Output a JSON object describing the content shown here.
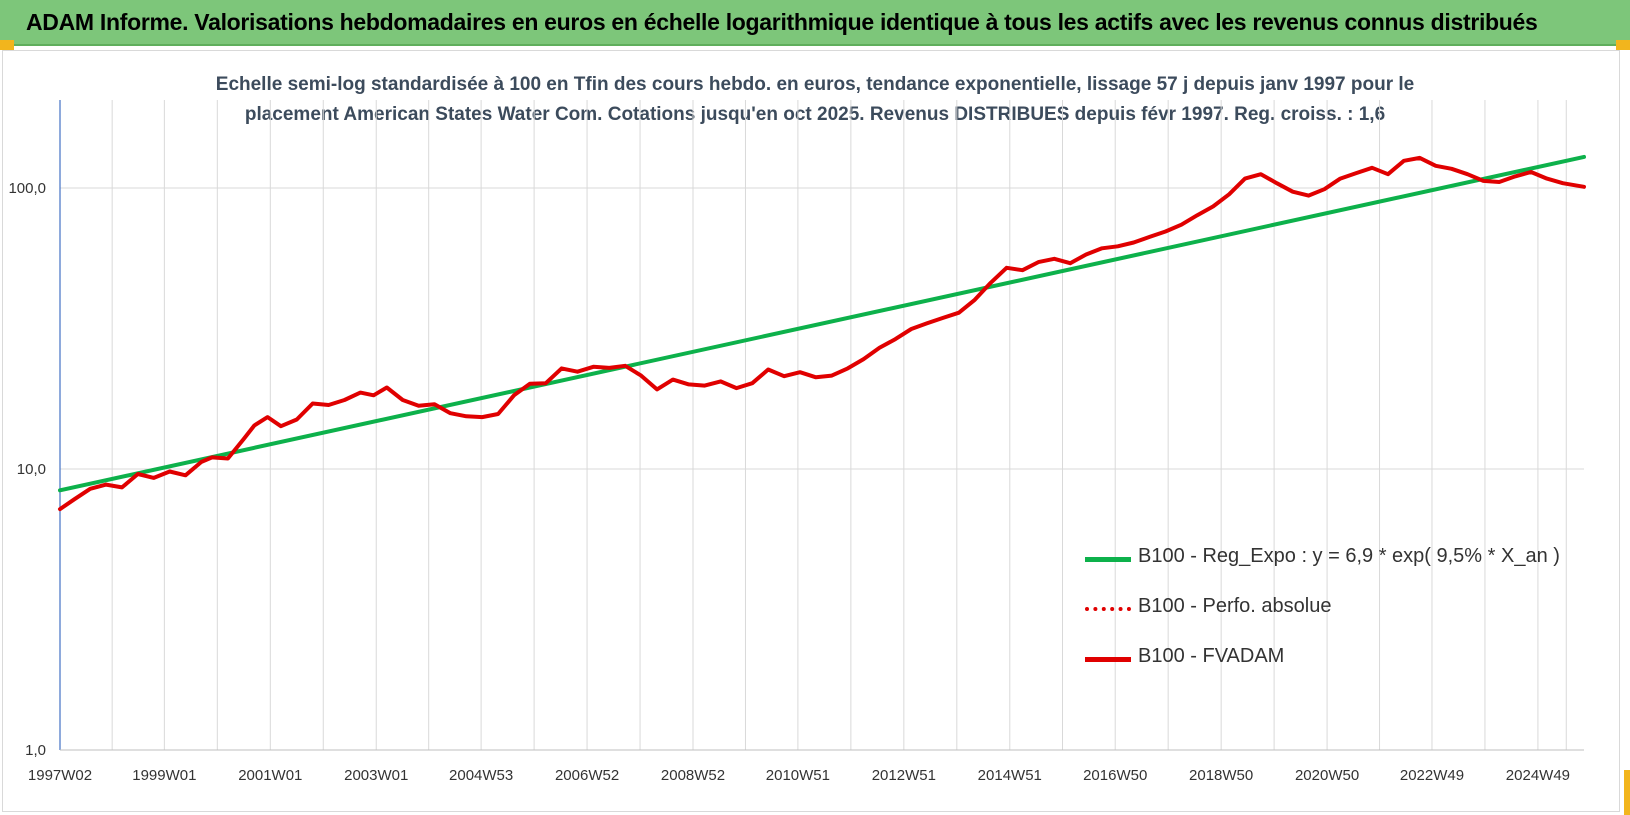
{
  "banner": {
    "title": "ADAM Informe. Valorisations hebdomadaires en euros en échelle logarithmique identique à tous les actifs avec les revenus connus distribués"
  },
  "chart_data": {
    "type": "line",
    "title_lines": [
      "Echelle semi-log standardisée à 100 en Tfin des cours hebdo. en euros, tendance exponentielle, lissage 57 j depuis janv 1997 pour le",
      "placement American States Water Com. Cotations jusqu'en oct 2025. Revenus DISTRIBUES depuis févr 1997. Reg. croiss. : 1,6"
    ],
    "y_scale": "log",
    "ylim": [
      1,
      180
    ],
    "y_ticks": [
      {
        "value": 1,
        "label": "1,0"
      },
      {
        "value": 10,
        "label": "10,0"
      },
      {
        "value": 100,
        "label": "100,0"
      }
    ],
    "xlim": [
      1997.03,
      2025.8
    ],
    "x_ticks": [
      {
        "value": 1997.03,
        "label": "1997W02"
      },
      {
        "value": 1999.0,
        "label": "1999W01"
      },
      {
        "value": 2001.0,
        "label": "2001W01"
      },
      {
        "value": 2003.0,
        "label": "2003W01"
      },
      {
        "value": 2004.98,
        "label": "2004W53"
      },
      {
        "value": 2006.98,
        "label": "2006W52"
      },
      {
        "value": 2008.98,
        "label": "2008W52"
      },
      {
        "value": 2010.96,
        "label": "2010W51"
      },
      {
        "value": 2012.96,
        "label": "2012W51"
      },
      {
        "value": 2014.96,
        "label": "2014W51"
      },
      {
        "value": 2016.95,
        "label": "2016W50"
      },
      {
        "value": 2018.95,
        "label": "2018W50"
      },
      {
        "value": 2020.95,
        "label": "2020W50"
      },
      {
        "value": 2022.93,
        "label": "2022W49"
      },
      {
        "value": 2024.93,
        "label": "2024W49"
      }
    ],
    "grid": true,
    "legend_position": "bottom-right",
    "colors": {
      "trend": "#0db14b",
      "fvadam": "#e00000",
      "perf": "#e00000",
      "axis": "#4472c4",
      "grid": "#d9d9d9"
    },
    "series": [
      {
        "name": "B100 - Reg_Expo : y = 6,9 * exp( 9,5% *  X_an )",
        "style": "solid",
        "color": "#0db14b",
        "x": [
          1997.03,
          2025.8
        ],
        "y": [
          8.4,
          129
        ]
      },
      {
        "name": "B100 - Perfo. absolue",
        "style": "dotted",
        "color": "#e00000",
        "x": [],
        "y": []
      },
      {
        "name": "B100 - FVADAM",
        "style": "solid",
        "color": "#e00000",
        "x": [
          1997.03,
          1997.3,
          1997.6,
          1997.9,
          1998.2,
          1998.5,
          1998.8,
          1999.1,
          1999.4,
          1999.7,
          1999.9,
          2000.2,
          2000.5,
          2000.7,
          2000.95,
          2001.2,
          2001.5,
          2001.8,
          2002.1,
          2002.4,
          2002.7,
          2002.95,
          2003.2,
          2003.5,
          2003.8,
          2004.1,
          2004.4,
          2004.7,
          2005.0,
          2005.3,
          2005.6,
          2005.9,
          2006.2,
          2006.5,
          2006.8,
          2007.1,
          2007.4,
          2007.7,
          2008.0,
          2008.3,
          2008.6,
          2008.9,
          2009.2,
          2009.5,
          2009.8,
          2010.1,
          2010.4,
          2010.7,
          2011.0,
          2011.3,
          2011.6,
          2011.9,
          2012.2,
          2012.5,
          2012.8,
          2013.1,
          2013.4,
          2013.7,
          2014.0,
          2014.3,
          2014.6,
          2014.9,
          2015.2,
          2015.5,
          2015.8,
          2016.1,
          2016.4,
          2016.7,
          2017.0,
          2017.3,
          2017.6,
          2017.9,
          2018.2,
          2018.5,
          2018.8,
          2019.1,
          2019.4,
          2019.7,
          2020.0,
          2020.3,
          2020.6,
          2020.9,
          2021.2,
          2021.5,
          2021.8,
          2022.1,
          2022.4,
          2022.7,
          2023.0,
          2023.3,
          2023.6,
          2023.9,
          2024.2,
          2024.5,
          2024.8,
          2025.1,
          2025.4,
          2025.8
        ],
        "y": [
          7.2,
          7.8,
          8.5,
          8.8,
          8.6,
          9.6,
          9.3,
          9.8,
          9.5,
          10.6,
          11.0,
          10.9,
          12.8,
          14.3,
          15.3,
          14.2,
          15.0,
          17.1,
          16.9,
          17.6,
          18.7,
          18.3,
          19.5,
          17.6,
          16.8,
          17.0,
          15.8,
          15.4,
          15.3,
          15.7,
          18.3,
          20.1,
          20.2,
          22.8,
          22.2,
          23.1,
          22.9,
          23.3,
          21.5,
          19.2,
          20.8,
          20.0,
          19.8,
          20.5,
          19.4,
          20.2,
          22.6,
          21.4,
          22.1,
          21.2,
          21.5,
          22.8,
          24.6,
          27.0,
          29.0,
          31.5,
          33.0,
          34.5,
          36.0,
          40.0,
          46.0,
          52.0,
          51.0,
          54.5,
          56.0,
          54.0,
          58.0,
          61.0,
          62.0,
          64.0,
          67.0,
          70.0,
          74.0,
          80.0,
          86.0,
          95.0,
          108.0,
          112.0,
          104.0,
          97.0,
          94.0,
          99.0,
          108.0,
          113.0,
          118.0,
          112.0,
          125.0,
          128.0,
          120.0,
          117.0,
          112.0,
          106.0,
          105.0,
          110.0,
          114.0,
          108.0,
          104.0,
          101.0
        ]
      }
    ]
  }
}
